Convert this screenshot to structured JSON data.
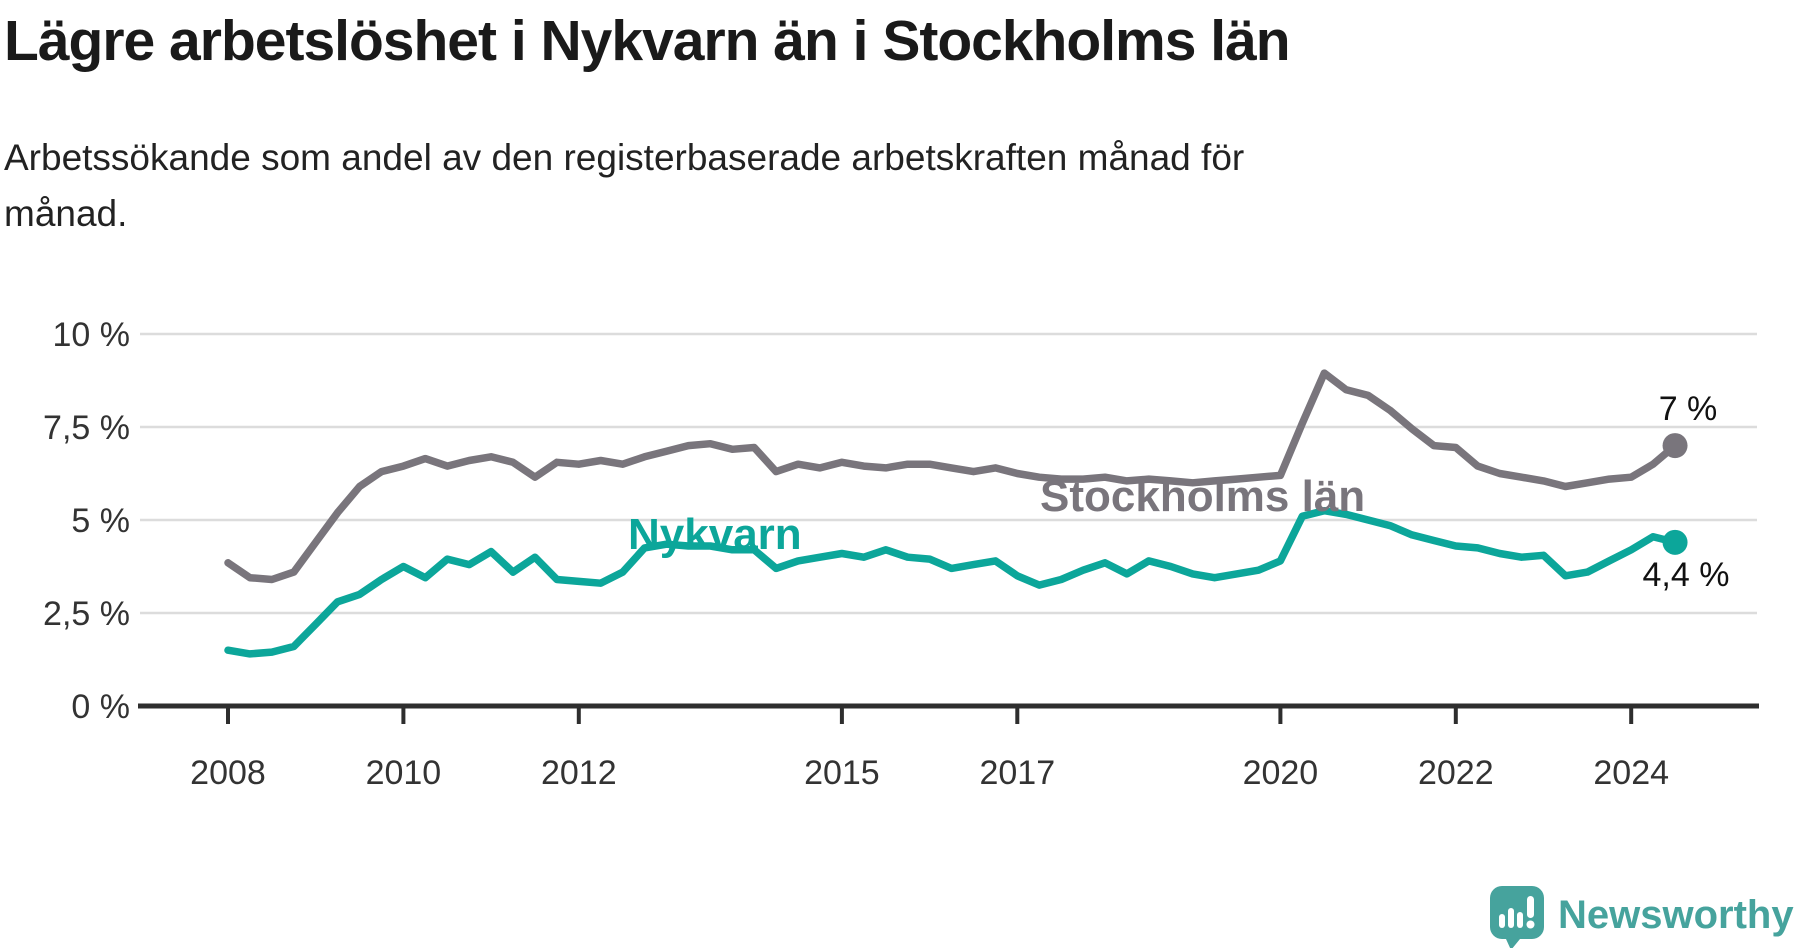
{
  "title": "Lägre arbetslöshet i Nykvarn än i Stockholms län",
  "subtitle_line1": "Arbetssökande som andel av den registerbaserade arbetskraften månad för",
  "subtitle_line2": "månad.",
  "footer": {
    "brand": "Newsworthy",
    "brand_color": "#46a39d"
  },
  "colors": {
    "title_text": "#1a1a1a",
    "grid": "#dcdcdc",
    "axis": "#2e2e2e",
    "tick_text": "#333333"
  },
  "chart_data": {
    "type": "line",
    "title": "Lägre arbetslöshet i Nykvarn än i Stockholms län",
    "x_start_year": 2008,
    "x_step_years": 0.25,
    "xlim": [
      2007.0,
      2025.4
    ],
    "ylim": [
      0,
      10.6
    ],
    "grid": "horizontal-only",
    "legend_position": "inline-labels",
    "y_ticks": [
      {
        "v": 0,
        "label": "0 %"
      },
      {
        "v": 2.5,
        "label": "2,5 %"
      },
      {
        "v": 5,
        "label": "5 %"
      },
      {
        "v": 7.5,
        "label": "7,5 %"
      },
      {
        "v": 10,
        "label": "10 %"
      }
    ],
    "x_ticks": [
      {
        "v": 2008,
        "label": "2008"
      },
      {
        "v": 2010,
        "label": "2010"
      },
      {
        "v": 2012,
        "label": "2012"
      },
      {
        "v": 2015,
        "label": "2015"
      },
      {
        "v": 2017,
        "label": "2017"
      },
      {
        "v": 2020,
        "label": "2020"
      },
      {
        "v": 2022,
        "label": "2022"
      },
      {
        "v": 2024,
        "label": "2024"
      }
    ],
    "series": [
      {
        "name": "Stockholms län",
        "color": "#79757c",
        "end_label": "7 %",
        "end_value": 7.0,
        "values": [
          3.85,
          3.45,
          3.4,
          3.6,
          4.4,
          5.2,
          5.9,
          6.3,
          6.45,
          6.65,
          6.45,
          6.6,
          6.7,
          6.55,
          6.15,
          6.55,
          6.5,
          6.6,
          6.5,
          6.7,
          6.85,
          7.0,
          7.05,
          6.9,
          6.95,
          6.3,
          6.5,
          6.4,
          6.55,
          6.45,
          6.4,
          6.5,
          6.5,
          6.4,
          6.3,
          6.4,
          6.25,
          6.15,
          6.1,
          6.1,
          6.15,
          6.05,
          6.1,
          6.05,
          6.0,
          6.05,
          6.1,
          6.15,
          6.2,
          7.6,
          8.95,
          8.5,
          8.35,
          7.95,
          7.45,
          7.0,
          6.95,
          6.45,
          6.25,
          6.15,
          6.05,
          5.9,
          6.0,
          6.1,
          6.15,
          6.5,
          7.0
        ]
      },
      {
        "name": "Nykvarn",
        "color": "#0ca69a",
        "end_label": "4,4 %",
        "end_value": 4.4,
        "values": [
          1.5,
          1.4,
          1.45,
          1.6,
          2.2,
          2.8,
          3.0,
          3.4,
          3.75,
          3.45,
          3.95,
          3.8,
          4.15,
          3.6,
          4.0,
          3.4,
          3.35,
          3.3,
          3.6,
          4.25,
          4.35,
          4.3,
          4.3,
          4.2,
          4.2,
          3.7,
          3.9,
          4.0,
          4.1,
          4.0,
          4.2,
          4.0,
          3.95,
          3.7,
          3.8,
          3.9,
          3.5,
          3.25,
          3.4,
          3.65,
          3.85,
          3.55,
          3.9,
          3.75,
          3.55,
          3.45,
          3.55,
          3.65,
          3.9,
          5.1,
          5.25,
          5.15,
          5.0,
          4.85,
          4.6,
          4.45,
          4.3,
          4.25,
          4.1,
          4.0,
          4.05,
          3.5,
          3.6,
          3.9,
          4.2,
          4.55,
          4.4
        ]
      }
    ]
  }
}
